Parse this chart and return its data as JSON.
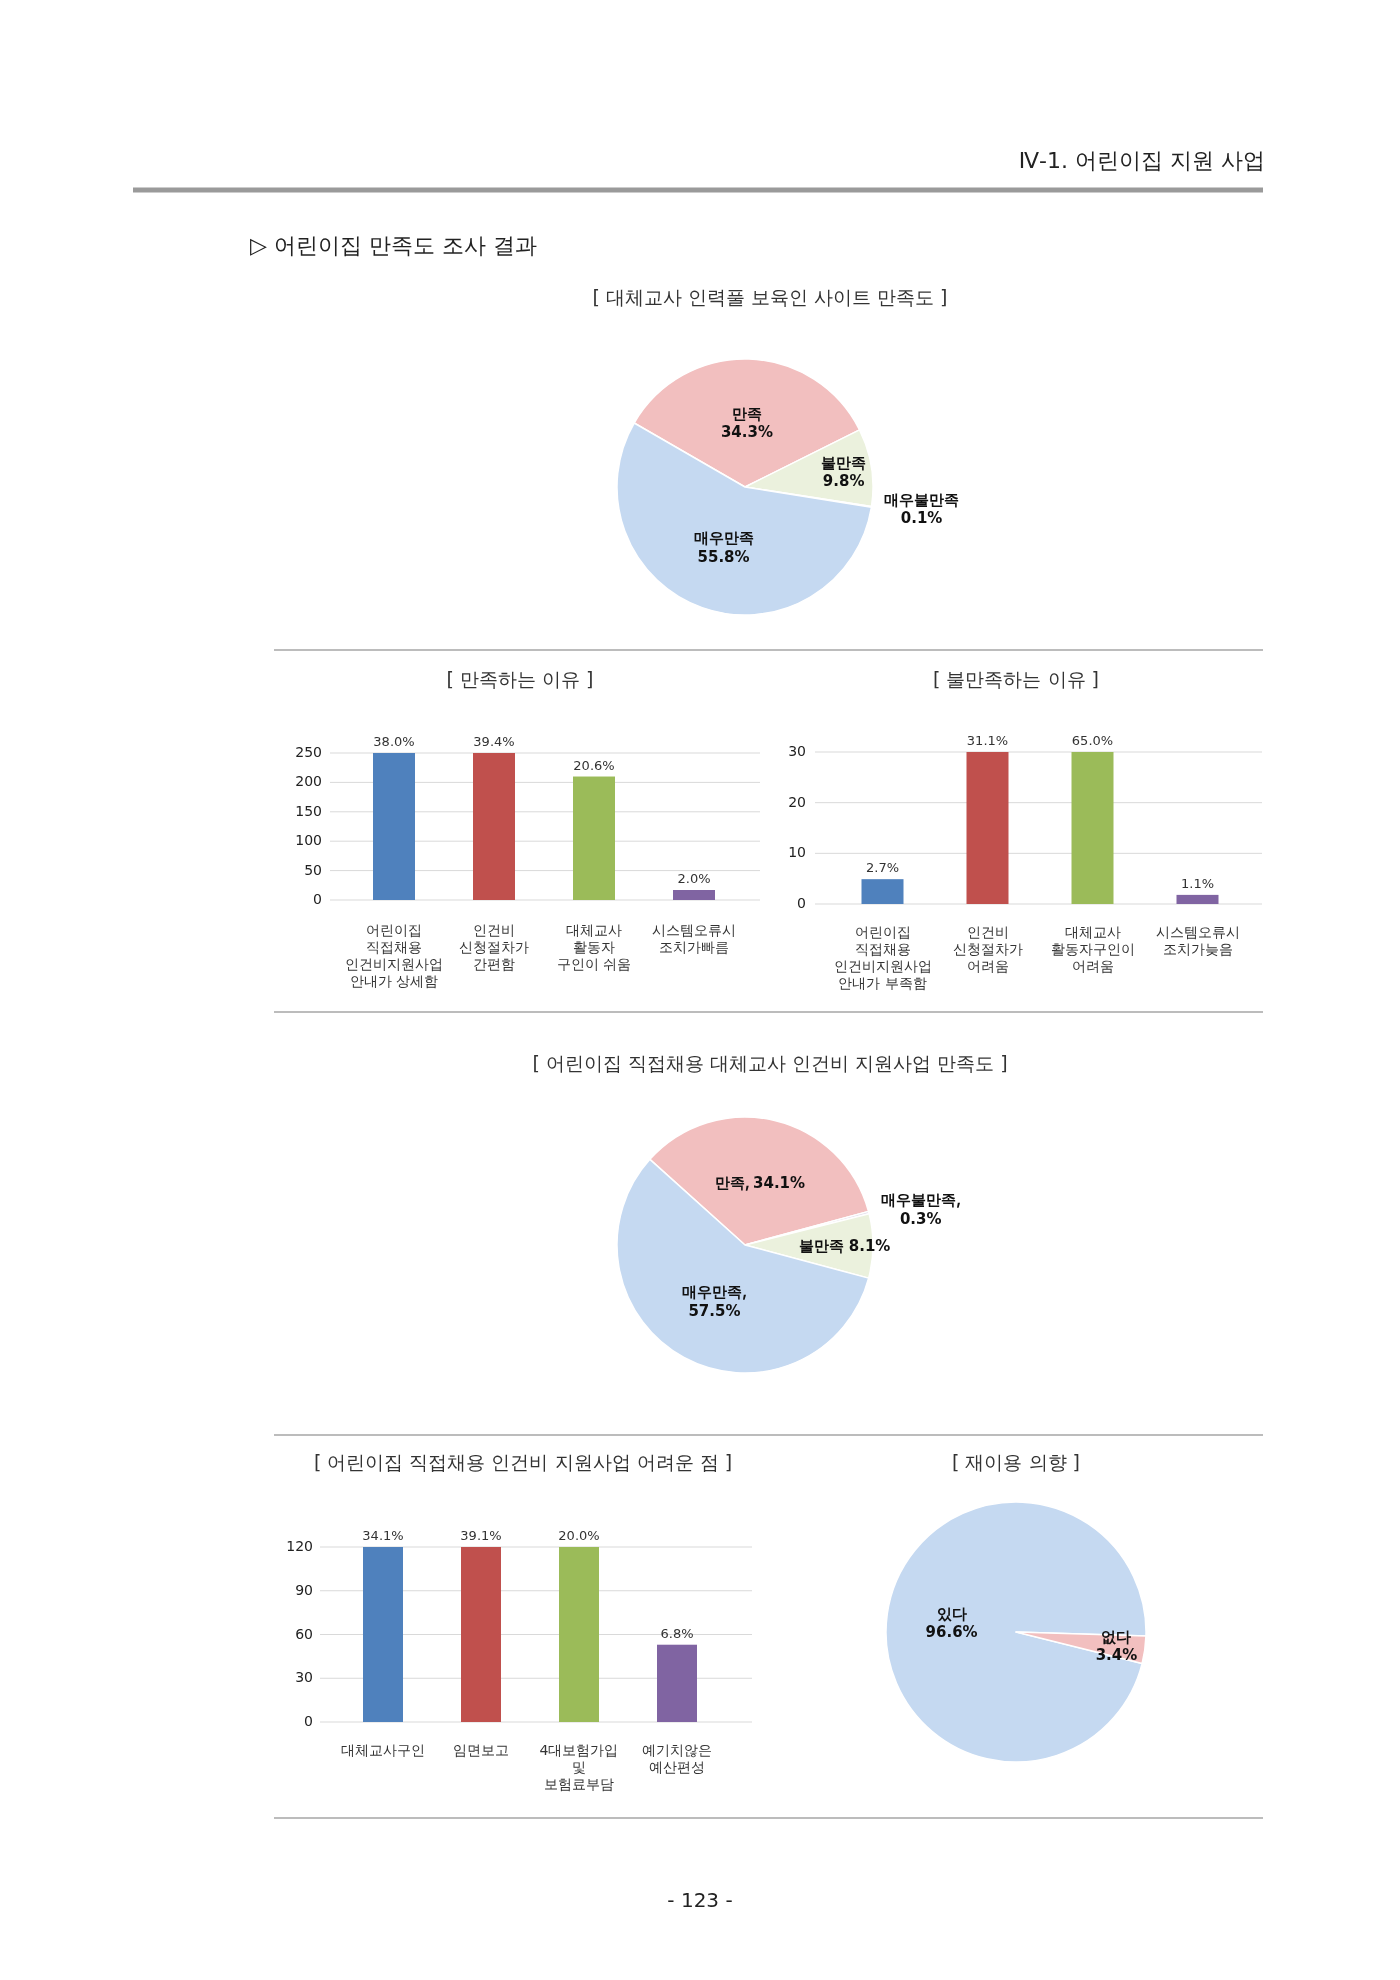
{
  "chart_data": [
    {
      "type": "pie",
      "title": "[ 대체교사 인력풀 보육인 사이트 만족도 ]",
      "categories": [
        "만족",
        "불만족",
        "매우불만족",
        "매우만족"
      ],
      "values": [
        34.3,
        9.8,
        0.1,
        55.8
      ],
      "value_labels": [
        "34.3%",
        "9.8%",
        "0.1%",
        "55.8%"
      ],
      "colors": [
        "#f2bfbf",
        "#ebf1dd",
        "#e4dfec",
        "#c5d9f1"
      ],
      "annotations": [
        "Ⅳ-1. 어린이집 지원 사업",
        "▷ 어린이집 만족도 조사 결과"
      ]
    },
    {
      "type": "bar",
      "title": "[ 만족하는 이유 ]",
      "categories": [
        "어린이집\n직접채용\n인건비지원사업\n안내가 상세함",
        "인건비\n신청절차가\n간편함",
        "대체교사\n활동자\n구인이 쉬움",
        "시스템오류시\n조치가빠름"
      ],
      "values": [
        250,
        250,
        210,
        17
      ],
      "colors": [
        "#4f81bd",
        "#c0504d",
        "#9bbb59",
        "#8064a2"
      ],
      "ylim": [
        0,
        250
      ],
      "yticks": [
        0,
        50,
        100,
        150,
        200,
        250
      ],
      "grid": "y",
      "annotations": [
        {
          "text": "38.0%",
          "x": "어린이집\n직접채용\n인건비지원사업\n안내가 상세함",
          "y": 250
        },
        {
          "text": "39.4%",
          "x": "인건비\n신청절차가\n간편함",
          "y": 250
        },
        {
          "text": "20.6%",
          "x": "대체교사\n활동자\n구인이 쉬움",
          "y": 210
        },
        {
          "text": "2.0%",
          "x": "시스템오류시\n조치가빠름",
          "y": 17
        }
      ]
    },
    {
      "type": "bar",
      "title": "[ 불만족하는 이유 ]",
      "categories": [
        "어린이집\n직접채용\n인건비지원사업\n안내가 부족함",
        "인건비\n신청절차가\n어려움",
        "대체교사\n활동자구인이\n어려움",
        "시스템오류시\n조치가늦음"
      ],
      "values": [
        4.9,
        30,
        30,
        1.8
      ],
      "colors": [
        "#4f81bd",
        "#c0504d",
        "#9bbb59",
        "#8064a2"
      ],
      "ylim": [
        0,
        30
      ],
      "yticks": [
        0,
        10,
        20,
        30
      ],
      "grid": "y",
      "annotations": [
        {
          "text": "2.7%",
          "x": "어린이집\n직접채용\n인건비지원사업\n안내가 부족함",
          "y": 4.9
        },
        {
          "text": "31.1%",
          "x": "인건비\n신청절차가\n어려움",
          "y": 30
        },
        {
          "text": "65.0%",
          "x": "대체교사\n활동자구인이\n어려움",
          "y": 30
        },
        {
          "text": "1.1%",
          "x": "시스템오류시\n조치가늦음",
          "y": 1.8
        }
      ]
    },
    {
      "type": "pie",
      "title": "[ 어린이집 직접채용 대체교사 인건비 지원사업 만족도 ]",
      "categories": [
        "만족",
        "매우불만족",
        "불만족",
        "매우만족"
      ],
      "values": [
        34.1,
        0.3,
        8.1,
        57.5
      ],
      "value_labels": [
        "34.1%",
        "0.3%",
        "8.1%",
        "57.5%"
      ],
      "colors": [
        "#f2bfbf",
        "#e4dfec",
        "#ebf1dd",
        "#c5d9f1"
      ]
    },
    {
      "type": "bar",
      "title": "[ 어린이집 직접채용 인건비 지원사업 어려운 점 ]",
      "categories": [
        "대체교사구인",
        "임면보고",
        "4대보험가입\n및\n보험료부담",
        "예기치않은\n예산편성"
      ],
      "values": [
        120,
        120,
        120,
        53
      ],
      "colors": [
        "#4f81bd",
        "#c0504d",
        "#9bbb59",
        "#8064a2"
      ],
      "ylim": [
        0,
        120
      ],
      "yticks": [
        0,
        30,
        60,
        90,
        120
      ],
      "grid": "y",
      "annotations": [
        "- 123 -",
        {
          "text": "34.1%",
          "x": "대체교사구인",
          "y": 120
        },
        {
          "text": "39.1%",
          "x": "임면보고",
          "y": 120
        },
        {
          "text": "20.0%",
          "x": "4대보험가입\n및\n보험료부담",
          "y": 120
        },
        {
          "text": "6.8%",
          "x": "예기치않은\n예산편성",
          "y": 53
        }
      ]
    },
    {
      "type": "pie",
      "title": "[ 재이용 의향 ]",
      "categories": [
        "있다",
        "없다"
      ],
      "values": [
        96.6,
        3.4
      ],
      "value_labels": [
        "96.6%",
        "3.4%"
      ],
      "colors": [
        "#c5d9f1",
        "#f2bfbf"
      ]
    }
  ]
}
